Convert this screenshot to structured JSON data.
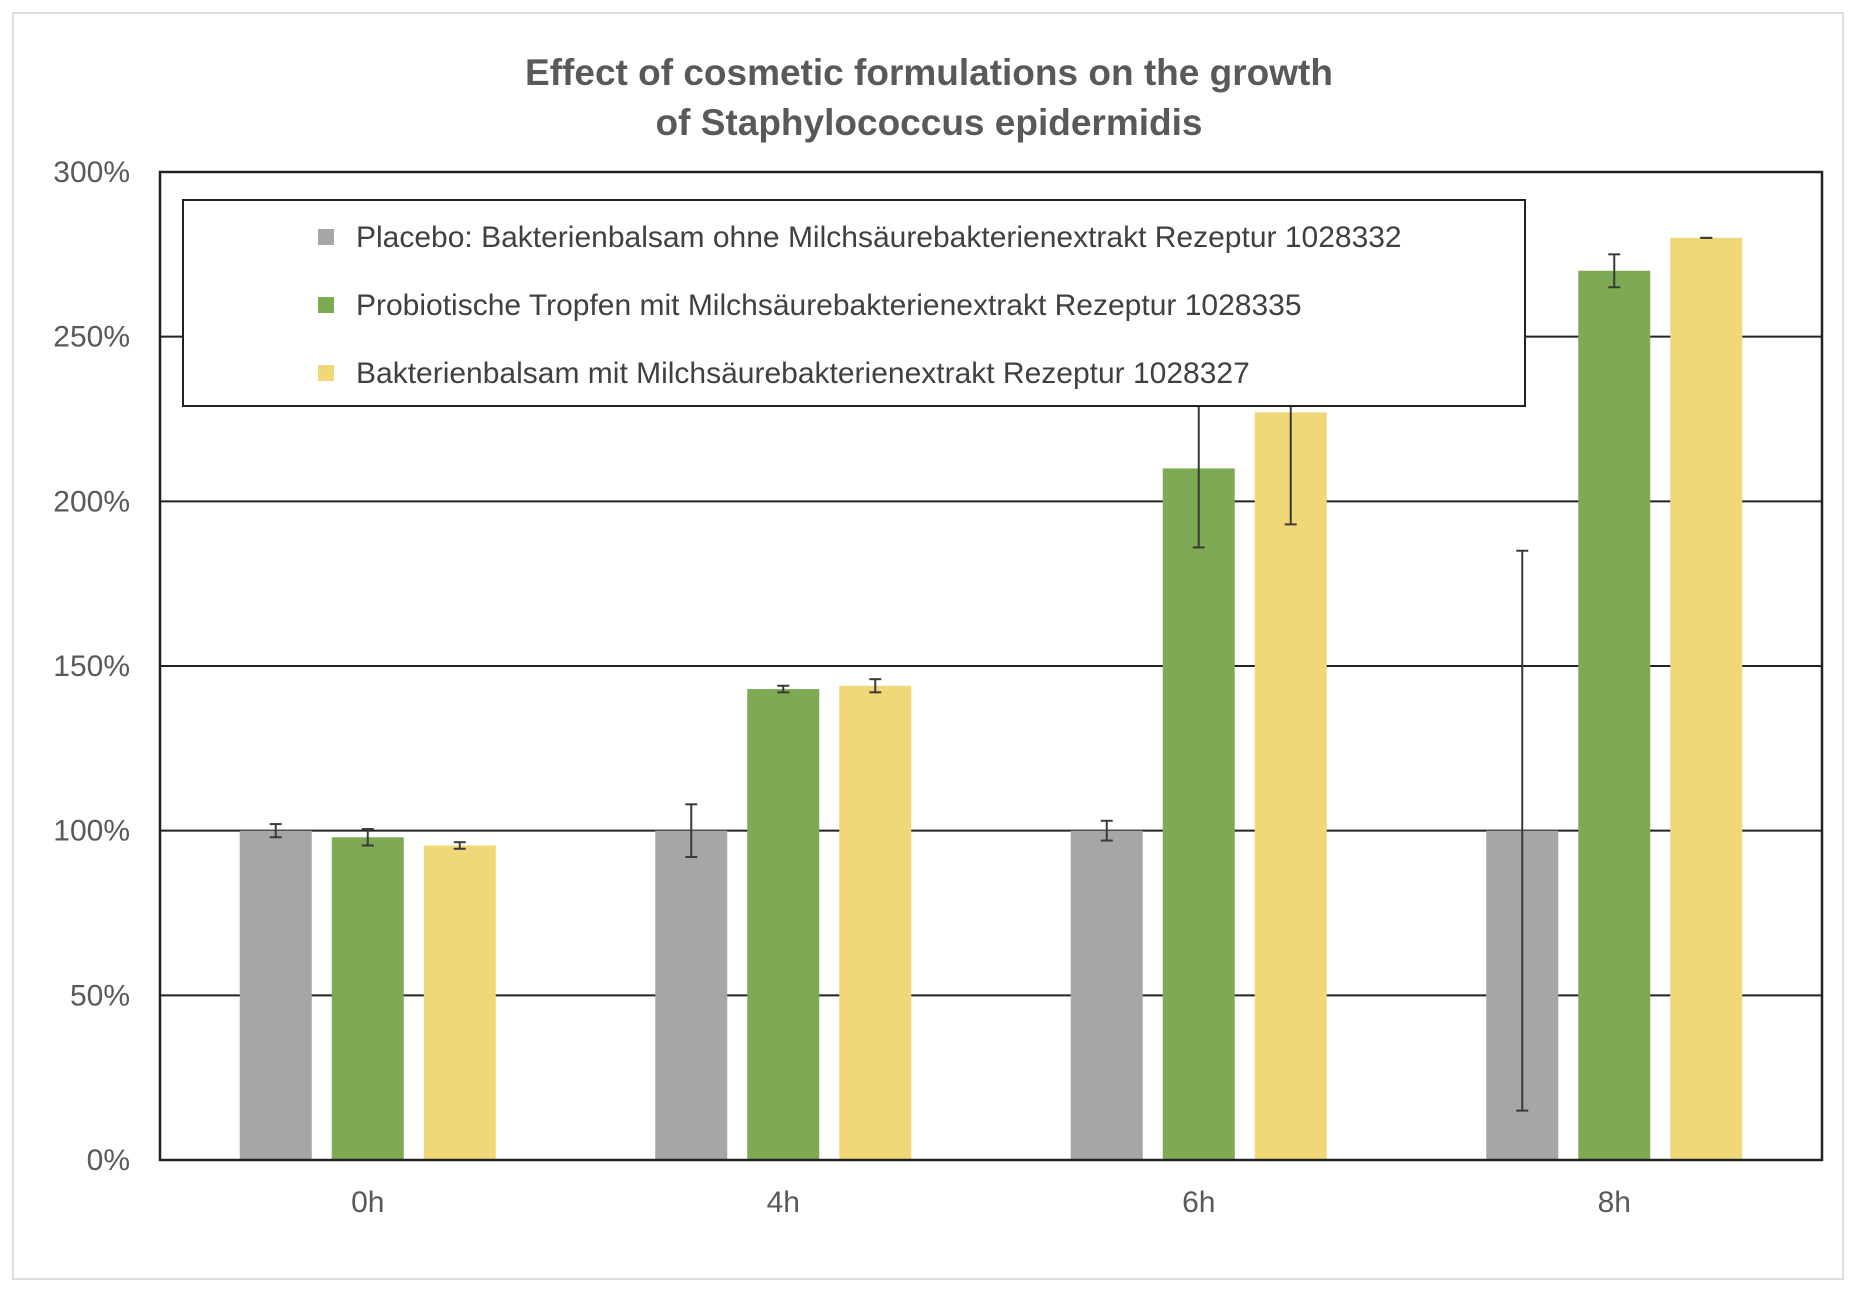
{
  "chart_data": {
    "type": "bar",
    "title_line1": "Effect of cosmetic formulations on the growth",
    "title_line2": "of Staphylococcus epidermidis",
    "xlabel": "",
    "ylabel": "",
    "ylim": [
      0,
      3.0
    ],
    "yticks": [
      "0%",
      "50%",
      "100%",
      "150%",
      "200%",
      "250%",
      "300%"
    ],
    "categories": [
      "0h",
      "4h",
      "6h",
      "8h"
    ],
    "grid": true,
    "legend_position": "top-left inside plot",
    "series": [
      {
        "name": "Placebo: Bakterienbalsam ohne Milchsäurebakterienextrakt Rezeptur 1028332",
        "color": "#a6a6a6",
        "values": [
          1.0,
          1.0,
          1.0,
          1.0
        ],
        "error": [
          0.02,
          0.08,
          0.03,
          0.85
        ]
      },
      {
        "name": "Probiotische Tropfen mit Milchsäurebakterienextrakt Rezeptur 1028335",
        "color": "#7daa52",
        "values": [
          0.98,
          1.43,
          2.1,
          2.7
        ],
        "error": [
          0.025,
          0.01,
          0.24,
          0.05
        ]
      },
      {
        "name": "Bakterienbalsam mit Milchsäurebakterienextrakt Rezeptur 1028327",
        "color": "#f0d878",
        "values": [
          0.955,
          1.44,
          2.27,
          2.8
        ],
        "error": [
          0.01,
          0.02,
          0.34,
          0.0
        ]
      }
    ]
  }
}
